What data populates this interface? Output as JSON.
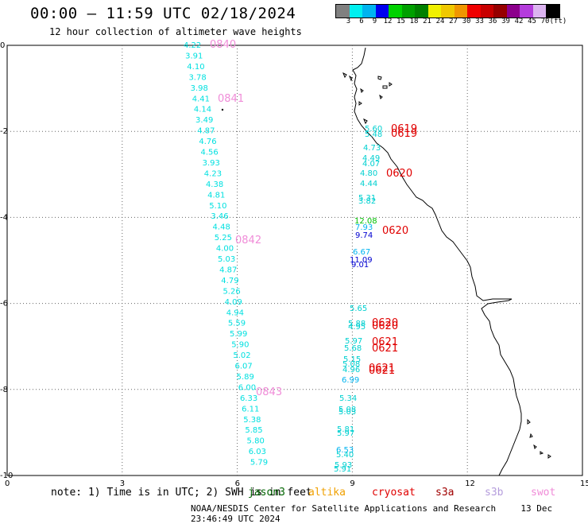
{
  "header": {
    "title": "00:00 – 11:59 UTC 02/18/2024",
    "subtitle": "12 hour collection of altimeter wave heights"
  },
  "colorbar": {
    "colors": [
      "#808080",
      "#00f0f0",
      "#00b4f0",
      "#0000f0",
      "#00d200",
      "#00a000",
      "#008000",
      "#f0f000",
      "#f0c800",
      "#f09600",
      "#f00000",
      "#c80000",
      "#960000",
      "#8c008c",
      "#b43cdc",
      "#dcb4f0",
      "#000000"
    ],
    "labels": [
      "3",
      "6",
      "9",
      "12",
      "15",
      "18",
      "21",
      "24",
      "27",
      "30",
      "33",
      "36",
      "39",
      "42",
      "45",
      "70",
      "(ft)"
    ]
  },
  "axes": {
    "x_ticks": [
      "0",
      "3",
      "6",
      "9",
      "12",
      "15"
    ],
    "y_ticks": [
      "0",
      "-2",
      "-4",
      "-6",
      "-8",
      "-10"
    ]
  },
  "note": "note: 1) Time is in UTC; 2) SWH is in feet",
  "satellites": [
    {
      "name": "jason3",
      "color": "#006400"
    },
    {
      "name": "altika",
      "color": "#f0a000"
    },
    {
      "name": "cryosat",
      "color": "#e00000"
    },
    {
      "name": "s3a",
      "color": "#a00000"
    },
    {
      "name": "s3b",
      "color": "#b49cdc"
    },
    {
      "name": "swot",
      "color": "#f08cd8"
    }
  ],
  "footer": {
    "credit": "NOAA/NESDIS Center for Satellite Applications and Research",
    "timestamp": "13 Dec 23:46:49 UTC 2024"
  },
  "track_left": {
    "color": "#00e0e0",
    "values": [
      "4.22",
      "3.91",
      "4.10",
      "3.78",
      "3.98",
      "4.41",
      "4.14",
      "3.49",
      "4.87",
      "4.76",
      "4.56",
      "3.93",
      "4.23",
      "4.38",
      "4.81",
      "5.10",
      "3.46",
      "4.48",
      "5.25",
      "4.00",
      "5.03",
      "4.87",
      "4.79",
      "5.26",
      "4.09",
      "4.94",
      "5.59",
      "5.99",
      "5.90",
      "5.02",
      "6.07",
      "5.89",
      "6.00",
      "6.33",
      "6.11",
      "5.38",
      "5.85",
      "5.80",
      "6.03",
      "5.79"
    ]
  },
  "track_right": {
    "values": [
      {
        "v": "5.60",
        "c": "#00d0d0"
      },
      {
        "v": "5.48",
        "c": "#00d0d0"
      },
      {
        "v": "4.73",
        "c": "#00d0d0"
      },
      {
        "v": "4.49",
        "c": "#00d0d0"
      },
      {
        "v": "4.07",
        "c": "#00d0d0"
      },
      {
        "v": "4.80",
        "c": "#00d0d0"
      },
      {
        "v": "4.44",
        "c": "#00d0d0"
      },
      {
        "v": "5.31",
        "c": "#00d0d0"
      },
      {
        "v": "3.82",
        "c": "#00d0d0"
      },
      {
        "v": "12.08",
        "c": "#00c000"
      },
      {
        "v": "7.93",
        "c": "#00b4f0"
      },
      {
        "v": "9.74",
        "c": "#0000d0"
      },
      {
        "v": "6.67",
        "c": "#00b4f0"
      },
      {
        "v": "11.09",
        "c": "#0000d0"
      },
      {
        "v": "9.01",
        "c": "#0000d0"
      },
      {
        "v": "5.65",
        "c": "#00d0d0"
      },
      {
        "v": "5.88",
        "c": "#00d0d0"
      },
      {
        "v": "4.95",
        "c": "#00d0d0"
      },
      {
        "v": "5.97",
        "c": "#00d0d0"
      },
      {
        "v": "5.68",
        "c": "#00d0d0"
      },
      {
        "v": "5.15",
        "c": "#00d0d0"
      },
      {
        "v": "5.08",
        "c": "#00d0d0"
      },
      {
        "v": "4.96",
        "c": "#00d0d0"
      },
      {
        "v": "6.99",
        "c": "#00b4f0"
      },
      {
        "v": "5.34",
        "c": "#00d0d0"
      },
      {
        "v": "5.08",
        "c": "#00d0d0"
      },
      {
        "v": "5.03",
        "c": "#00d0d0"
      },
      {
        "v": "5.81",
        "c": "#00d0d0"
      },
      {
        "v": "5.97",
        "c": "#00d0d0"
      },
      {
        "v": "6.53",
        "c": "#00b4f0"
      },
      {
        "v": "5.40",
        "c": "#00d0d0"
      },
      {
        "v": "5.93",
        "c": "#00d0d0"
      },
      {
        "v": "5.91",
        "c": "#00d0d0"
      }
    ]
  },
  "time_labels": [
    {
      "t": "0840",
      "c": "#f08cd8"
    },
    {
      "t": "0841",
      "c": "#f08cd8"
    },
    {
      "t": "0842",
      "c": "#f08cd8"
    },
    {
      "t": "0843",
      "c": "#f08cd8"
    },
    {
      "t": "0619",
      "c": "#e00000"
    },
    {
      "t": "0619",
      "c": "#e00000"
    },
    {
      "t": "0620",
      "c": "#e00000"
    },
    {
      "t": "0620",
      "c": "#e00000"
    },
    {
      "t": "0620",
      "c": "#e00000"
    },
    {
      "t": "0620",
      "c": "#e00000"
    },
    {
      "t": "0621",
      "c": "#e00000"
    },
    {
      "t": "0621",
      "c": "#e00000"
    },
    {
      "t": "0621",
      "c": "#e00000"
    },
    {
      "t": "0621",
      "c": "#e00000"
    }
  ]
}
